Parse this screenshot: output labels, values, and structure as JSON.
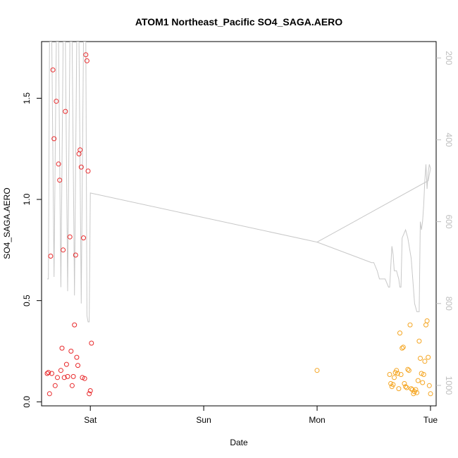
{
  "chart_data": {
    "type": "scatter",
    "title": "ATOM1 Northeast_Pacific SO4_SAGA.AERO",
    "xlabel": "Date",
    "ylabel": "SO4_SAGA.AERO",
    "xlim": [
      -0.43,
      3.05
    ],
    "ylim": [
      -0.02,
      1.78
    ],
    "x_ticks": [
      {
        "value": 0,
        "label": "Sat"
      },
      {
        "value": 1,
        "label": "Sun"
      },
      {
        "value": 2,
        "label": "Mon"
      },
      {
        "value": 3,
        "label": "Tue"
      }
    ],
    "y_ticks": [
      {
        "value": 0.0,
        "label": "0.0"
      },
      {
        "value": 0.5,
        "label": "0.5"
      },
      {
        "value": 1.0,
        "label": "1.0"
      },
      {
        "value": 1.5,
        "label": "1.5"
      }
    ],
    "right_axis": {
      "color": "#bebebe",
      "ylim": [
        1050,
        160
      ],
      "ticks": [
        {
          "value": 200,
          "label": "200"
        },
        {
          "value": 400,
          "label": "400"
        },
        {
          "value": 600,
          "label": "600"
        },
        {
          "value": 800,
          "label": "800"
        },
        {
          "value": 1000,
          "label": "1000"
        }
      ],
      "line": {
        "color": "#c8c8c8",
        "x": [
          -0.38,
          -0.37,
          -0.36,
          -0.34,
          -0.32,
          -0.3,
          -0.28,
          -0.26,
          -0.24,
          -0.22,
          -0.2,
          -0.18,
          -0.16,
          -0.14,
          -0.12,
          -0.1,
          -0.08,
          -0.06,
          -0.04,
          -0.03,
          -0.02,
          -0.01,
          0.0,
          1.0,
          2.0,
          2.48,
          2.5,
          2.53,
          2.55,
          2.6,
          2.63,
          2.64,
          2.66,
          2.67,
          2.68,
          2.7,
          2.72,
          2.73,
          2.74,
          2.75,
          2.78,
          2.8,
          2.83,
          2.86,
          2.88,
          2.9,
          2.91,
          2.92,
          2.93,
          2.94,
          2.95,
          2.96,
          2.97,
          2.98,
          2.99,
          3.0,
          2.98,
          2.0
        ],
        "y": [
          740,
          740,
          160,
          160,
          735,
          160,
          160,
          760,
          160,
          160,
          770,
          160,
          160,
          780,
          160,
          160,
          800,
          160,
          160,
          830,
          845,
          845,
          530,
          590,
          650,
          700,
          700,
          720,
          740,
          740,
          760,
          760,
          660,
          680,
          720,
          720,
          740,
          760,
          760,
          640,
          620,
          640,
          690,
          800,
          820,
          820,
          600,
          620,
          600,
          560,
          500,
          460,
          520,
          480,
          460,
          470,
          500,
          650
        ]
      }
    },
    "series": [
      {
        "color": "#e8292b",
        "x": [
          -0.37,
          -0.36,
          -0.35,
          -0.33,
          -0.32,
          -0.31,
          -0.3,
          -0.28,
          -0.27,
          -0.26,
          -0.25,
          -0.24,
          -0.22,
          -0.21,
          -0.2,
          -0.18,
          -0.17,
          -0.16,
          -0.14,
          -0.13,
          -0.12,
          -0.1,
          -0.09,
          -0.08,
          -0.06,
          -0.05,
          -0.04,
          -0.03,
          -0.02,
          -0.01,
          0.0,
          0.01,
          -0.34,
          -0.38,
          -0.29,
          -0.23,
          -0.15,
          -0.11,
          -0.07
        ],
        "y": [
          0.145,
          0.04,
          0.72,
          1.64,
          1.3,
          0.08,
          1.485,
          1.175,
          1.095,
          0.155,
          0.265,
          0.75,
          1.435,
          0.185,
          0.125,
          0.815,
          0.25,
          0.08,
          0.38,
          0.725,
          0.22,
          1.225,
          1.245,
          1.16,
          0.81,
          0.115,
          1.715,
          1.685,
          1.14,
          0.04,
          0.055,
          0.29,
          0.14,
          0.14,
          0.12,
          0.12,
          0.125,
          0.18,
          0.12
        ]
      },
      {
        "color": "#f5a623",
        "x": [
          2.0,
          2.64,
          2.65,
          2.66,
          2.67,
          2.68,
          2.69,
          2.7,
          2.71,
          2.72,
          2.73,
          2.74,
          2.75,
          2.76,
          2.77,
          2.78,
          2.79,
          2.8,
          2.81,
          2.82,
          2.83,
          2.84,
          2.85,
          2.86,
          2.87,
          2.88,
          2.89,
          2.9,
          2.91,
          2.92,
          2.93,
          2.94,
          2.95,
          2.96,
          2.97,
          2.98,
          2.99,
          3.0
        ],
        "y": [
          0.155,
          0.135,
          0.09,
          0.075,
          0.085,
          0.12,
          0.145,
          0.155,
          0.14,
          0.065,
          0.34,
          0.135,
          0.265,
          0.27,
          0.09,
          0.075,
          0.07,
          0.16,
          0.155,
          0.38,
          0.065,
          0.06,
          0.04,
          0.05,
          0.06,
          0.045,
          0.105,
          0.3,
          0.215,
          0.14,
          0.095,
          0.135,
          0.2,
          0.38,
          0.4,
          0.22,
          0.08,
          0.04
        ]
      }
    ]
  }
}
